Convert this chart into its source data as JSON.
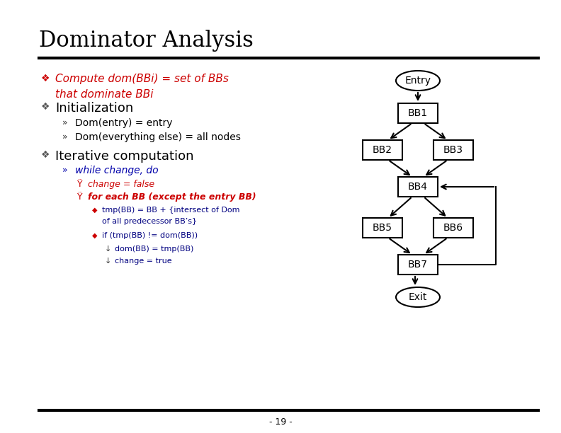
{
  "title": "Dominator Analysis",
  "title_fontsize": 22,
  "bg_color": "#ffffff",
  "line_color": "#000000",
  "bullet_color_red": "#cc0000",
  "bullet_color_black": "#000000",
  "bullet_color_blue": "#000080",
  "bullet_color_dkblue": "#0000aa",
  "bullet1_line1": "Compute dom(BBi) = set of BBs",
  "bullet1_line2": "that dominate BBi",
  "bullet2_text": "Initialization",
  "sub2a": "Dom(entry) = entry",
  "sub2b": "Dom(everything else) = all nodes",
  "bullet3_text": "Iterative computation",
  "sub3a_text": "while change, do",
  "sub3b_text": "change = false",
  "sub3c_text": "for each BB (except the entry BB)",
  "sub3d_text1": "tmp(BB) = BB + {intersect of Dom",
  "sub3d_text2": "of all predecessor BB’s}",
  "sub3e_text": "if (tmp(BB) != dom(BB))",
  "sub3f_text": "dom(BB) = tmp(BB)",
  "sub3g_text": "change = true",
  "page_num": "- 19 -"
}
